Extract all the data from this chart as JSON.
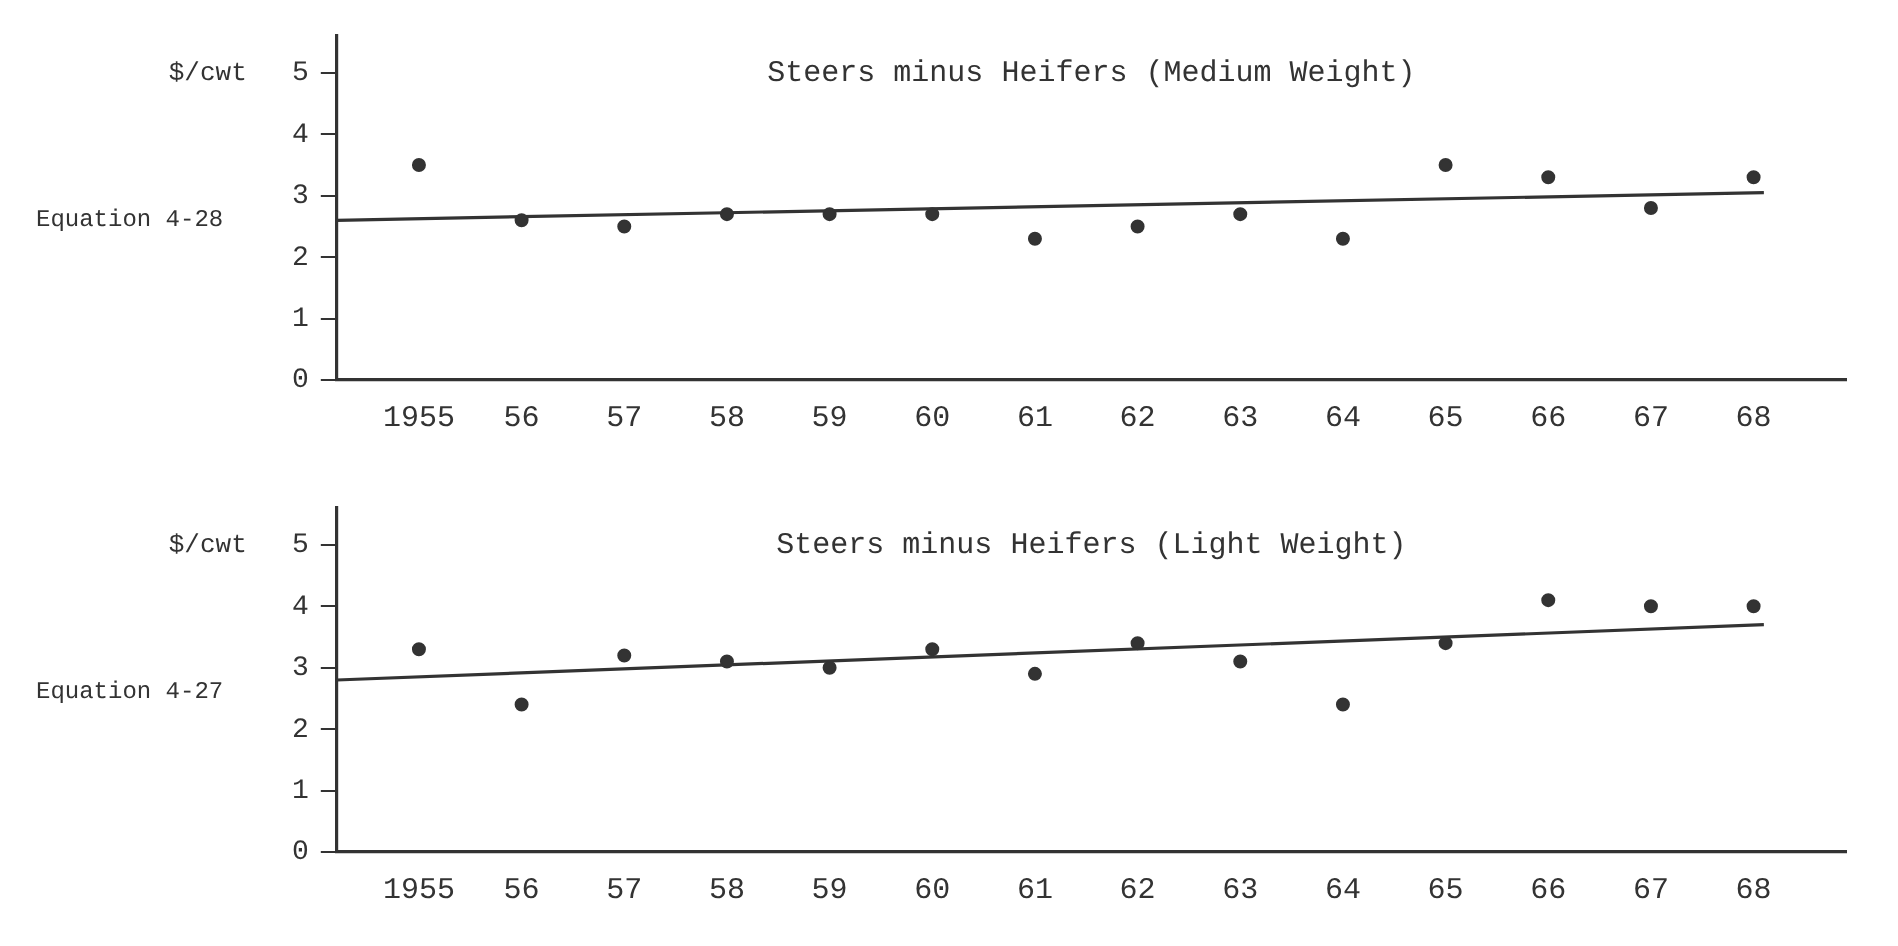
{
  "chart_data": [
    {
      "type": "scatter",
      "title": "Steers minus Heifers (Medium Weight)",
      "ylabel": "$/cwt",
      "annotations": [
        "Equation 4-28"
      ],
      "grid": false,
      "legend": false,
      "marker": "circle",
      "xlim": [
        1954.2,
        1968.9
      ],
      "xticks": [
        {
          "value": 1955,
          "label": "1955"
        },
        {
          "value": 1956,
          "label": "56"
        },
        {
          "value": 1957,
          "label": "57"
        },
        {
          "value": 1958,
          "label": "58"
        },
        {
          "value": 1959,
          "label": "59"
        },
        {
          "value": 1960,
          "label": "60"
        },
        {
          "value": 1961,
          "label": "61"
        },
        {
          "value": 1962,
          "label": "62"
        },
        {
          "value": 1963,
          "label": "63"
        },
        {
          "value": 1964,
          "label": "64"
        },
        {
          "value": 1965,
          "label": "65"
        },
        {
          "value": 1966,
          "label": "66"
        },
        {
          "value": 1967,
          "label": "67"
        },
        {
          "value": 1968,
          "label": "68"
        }
      ],
      "ylim": [
        0,
        5.6
      ],
      "yticks": [
        0,
        1,
        2,
        3,
        4,
        5
      ],
      "series": [
        {
          "color": "#333333",
          "x": [
            1955,
            1956,
            1957,
            1958,
            1959,
            1960,
            1961,
            1962,
            1963,
            1964,
            1965,
            1966,
            1967,
            1968
          ],
          "values": [
            3.5,
            2.6,
            2.5,
            2.7,
            2.7,
            2.7,
            2.3,
            2.5,
            2.7,
            2.3,
            3.5,
            3.3,
            2.8,
            3.3
          ]
        },
        {
          "type": "line",
          "color": "#333333",
          "marker": "none",
          "x": [
            1954.2,
            1968.1
          ],
          "values": [
            2.6,
            3.05
          ]
        }
      ]
    },
    {
      "type": "scatter",
      "title": "Steers minus Heifers (Light Weight)",
      "ylabel": "$/cwt",
      "annotations": [
        "Equation 4-27"
      ],
      "grid": false,
      "legend": false,
      "marker": "circle",
      "xlim": [
        1954.2,
        1968.9
      ],
      "xticks": [
        {
          "value": 1955,
          "label": "1955"
        },
        {
          "value": 1956,
          "label": "56"
        },
        {
          "value": 1957,
          "label": "57"
        },
        {
          "value": 1958,
          "label": "58"
        },
        {
          "value": 1959,
          "label": "59"
        },
        {
          "value": 1960,
          "label": "60"
        },
        {
          "value": 1961,
          "label": "61"
        },
        {
          "value": 1962,
          "label": "62"
        },
        {
          "value": 1963,
          "label": "63"
        },
        {
          "value": 1964,
          "label": "64"
        },
        {
          "value": 1965,
          "label": "65"
        },
        {
          "value": 1966,
          "label": "66"
        },
        {
          "value": 1967,
          "label": "67"
        },
        {
          "value": 1968,
          "label": "68"
        }
      ],
      "ylim": [
        0,
        5.6
      ],
      "yticks": [
        0,
        1,
        2,
        3,
        4,
        5
      ],
      "series": [
        {
          "color": "#333333",
          "x": [
            1955,
            1956,
            1957,
            1958,
            1959,
            1960,
            1961,
            1962,
            1963,
            1964,
            1965,
            1966,
            1967,
            1968
          ],
          "values": [
            3.3,
            2.4,
            3.2,
            3.1,
            3.0,
            3.3,
            2.9,
            3.4,
            3.1,
            2.4,
            3.4,
            4.1,
            4.0,
            4.0
          ]
        },
        {
          "type": "line",
          "color": "#333333",
          "marker": "none",
          "x": [
            1954.2,
            1968.1
          ],
          "values": [
            2.8,
            3.7
          ]
        }
      ]
    }
  ]
}
